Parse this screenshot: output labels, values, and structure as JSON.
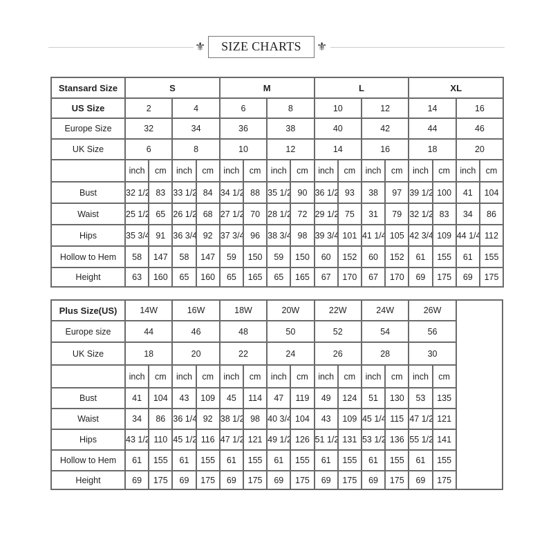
{
  "title": "SIZE CHARTS",
  "ornament_icon": "fleur-de-lis-ornament",
  "standard": {
    "header_label": "Stansard Size",
    "groups": [
      "S",
      "M",
      "L",
      "XL"
    ],
    "us_label": "US Size",
    "us": [
      "2",
      "4",
      "6",
      "8",
      "10",
      "12",
      "14",
      "16"
    ],
    "europe_label": "Europe Size",
    "europe": [
      "32",
      "34",
      "36",
      "38",
      "40",
      "42",
      "44",
      "46"
    ],
    "uk_label": "UK Size",
    "uk": [
      "6",
      "8",
      "10",
      "12",
      "14",
      "16",
      "18",
      "20"
    ],
    "units": [
      "inch",
      "cm"
    ],
    "measurements": [
      {
        "label": "Bust",
        "values": [
          "32 1/2",
          "83",
          "33 1/2",
          "84",
          "34 1/2",
          "88",
          "35 1/2",
          "90",
          "36 1/2",
          "93",
          "38",
          "97",
          "39 1/2",
          "100",
          "41",
          "104"
        ]
      },
      {
        "label": "Waist",
        "values": [
          "25 1/2",
          "65",
          "26 1/2",
          "68",
          "27 1/2",
          "70",
          "28 1/2",
          "72",
          "29 1/2",
          "75",
          "31",
          "79",
          "32 1/2",
          "83",
          "34",
          "86"
        ]
      },
      {
        "label": "Hips",
        "values": [
          "35 3/4",
          "91",
          "36 3/4",
          "92",
          "37 3/4",
          "96",
          "38 3/4",
          "98",
          "39 3/4",
          "101",
          "41 1/4",
          "105",
          "42 3/4",
          "109",
          "44 1/4",
          "112"
        ]
      },
      {
        "label": "Hollow to Hem",
        "values": [
          "58",
          "147",
          "58",
          "147",
          "59",
          "150",
          "59",
          "150",
          "60",
          "152",
          "60",
          "152",
          "61",
          "155",
          "61",
          "155"
        ]
      },
      {
        "label": "Height",
        "values": [
          "63",
          "160",
          "65",
          "160",
          "65",
          "165",
          "65",
          "165",
          "67",
          "170",
          "67",
          "170",
          "69",
          "175",
          "69",
          "175"
        ]
      }
    ]
  },
  "plus": {
    "header_label": "Plus Size(US)",
    "us": [
      "14W",
      "16W",
      "18W",
      "20W",
      "22W",
      "24W",
      "26W"
    ],
    "europe_label": "Europe size",
    "europe": [
      "44",
      "46",
      "48",
      "50",
      "52",
      "54",
      "56"
    ],
    "uk_label": "UK Size",
    "uk": [
      "18",
      "20",
      "22",
      "24",
      "26",
      "28",
      "30"
    ],
    "units": [
      "inch",
      "cm"
    ],
    "measurements": [
      {
        "label": "Bust",
        "values": [
          "41",
          "104",
          "43",
          "109",
          "45",
          "114",
          "47",
          "119",
          "49",
          "124",
          "51",
          "130",
          "53",
          "135"
        ]
      },
      {
        "label": "Waist",
        "values": [
          "34",
          "86",
          "36 1/4",
          "92",
          "38 1/2",
          "98",
          "40 3/4",
          "104",
          "43",
          "109",
          "45 1/4",
          "115",
          "47 1/2",
          "121"
        ]
      },
      {
        "label": "Hips",
        "values": [
          "43 1/2",
          "110",
          "45 1/2",
          "116",
          "47 1/2",
          "121",
          "49 1/2",
          "126",
          "51 1/2",
          "131",
          "53 1/2",
          "136",
          "55 1/2",
          "141"
        ]
      },
      {
        "label": "Hollow to Hem",
        "values": [
          "61",
          "155",
          "61",
          "155",
          "61",
          "155",
          "61",
          "155",
          "61",
          "155",
          "61",
          "155",
          "61",
          "155"
        ]
      },
      {
        "label": "Height",
        "values": [
          "69",
          "175",
          "69",
          "175",
          "69",
          "175",
          "69",
          "175",
          "69",
          "175",
          "69",
          "175",
          "69",
          "175"
        ]
      }
    ]
  }
}
